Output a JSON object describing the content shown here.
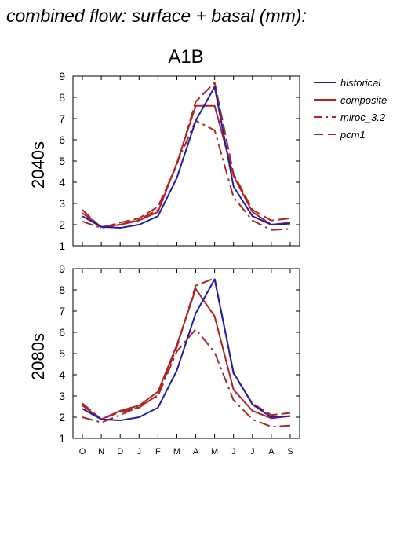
{
  "figure": {
    "main_title": "combined flow: surface + basal (mm):",
    "scenario": "A1B"
  },
  "colors": {
    "historical": "#1e1eb4",
    "future": "#b42323",
    "axis": "#000000"
  },
  "chart_data": [
    {
      "type": "line",
      "panel_label": "2040s",
      "categories": [
        "O",
        "N",
        "D",
        "J",
        "F",
        "M",
        "A",
        "M",
        "J",
        "J",
        "A",
        "S"
      ],
      "ylim": [
        1,
        9
      ],
      "yticks": [
        1,
        2,
        3,
        4,
        5,
        6,
        7,
        8,
        9
      ],
      "legend": "right",
      "series": [
        {
          "name": "historical",
          "style": "solid",
          "values": [
            2.4,
            1.9,
            1.85,
            2.0,
            2.4,
            4.2,
            6.9,
            8.5,
            3.8,
            2.4,
            2.0,
            2.05
          ]
        },
        {
          "name": "composite",
          "style": "solid",
          "values": [
            2.55,
            1.9,
            2.0,
            2.2,
            2.6,
            4.9,
            7.6,
            7.6,
            4.3,
            2.6,
            2.0,
            2.1
          ]
        },
        {
          "name": "miroc_3.2",
          "style": "dashdot",
          "values": [
            2.15,
            1.85,
            2.0,
            2.25,
            2.7,
            4.9,
            6.9,
            6.45,
            3.3,
            2.2,
            1.75,
            1.8
          ]
        },
        {
          "name": "pcm1",
          "style": "dashed",
          "values": [
            2.7,
            1.85,
            2.1,
            2.3,
            2.85,
            4.8,
            7.8,
            8.7,
            4.4,
            2.7,
            2.2,
            2.3
          ]
        }
      ]
    },
    {
      "type": "line",
      "panel_label": "2080s",
      "categories": [
        "O",
        "N",
        "D",
        "J",
        "F",
        "M",
        "A",
        "M",
        "J",
        "J",
        "A",
        "S"
      ],
      "ylim": [
        1,
        9
      ],
      "yticks": [
        1,
        2,
        3,
        4,
        5,
        6,
        7,
        8,
        9
      ],
      "series": [
        {
          "name": "historical",
          "style": "solid",
          "values": [
            2.4,
            1.9,
            1.85,
            2.0,
            2.45,
            4.2,
            6.9,
            8.5,
            4.1,
            2.6,
            2.0,
            2.05
          ]
        },
        {
          "name": "composite",
          "style": "solid",
          "values": [
            2.55,
            1.9,
            2.3,
            2.55,
            3.2,
            5.4,
            8.05,
            6.75,
            3.3,
            2.3,
            1.95,
            2.05
          ]
        },
        {
          "name": "miroc_3.2",
          "style": "dashdot",
          "values": [
            2.0,
            1.75,
            2.1,
            2.5,
            3.0,
            5.1,
            6.15,
            5.05,
            2.8,
            1.9,
            1.55,
            1.6
          ]
        },
        {
          "name": "pcm1",
          "style": "dashed",
          "values": [
            2.65,
            1.9,
            2.25,
            2.45,
            3.05,
            5.3,
            8.2,
            8.55,
            4.05,
            2.65,
            2.1,
            2.2
          ]
        }
      ]
    }
  ]
}
